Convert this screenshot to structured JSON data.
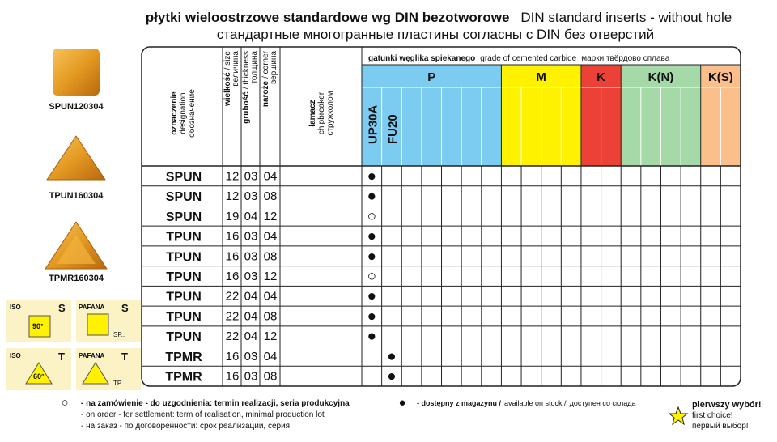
{
  "title": {
    "pl": "płytki wieloostrzowe standardowe wg DIN bezotworowe",
    "en": "DIN standard inserts - without hole",
    "ru": "стандартные многогранные пластины согласны с DIN без отверстий"
  },
  "inserts": [
    {
      "label": "SPUN120304"
    },
    {
      "label": "TPUN160304"
    },
    {
      "label": "TPMR160304"
    }
  ],
  "iso_boxes": [
    {
      "iso": "ISO",
      "iso_letter": "S",
      "angle": "90°",
      "pafana": "PAFANA",
      "pafana_letter": "S",
      "code": "SP.."
    },
    {
      "iso": "ISO",
      "iso_letter": "T",
      "angle": "60°",
      "pafana": "PAFANA",
      "pafana_letter": "T",
      "code": "TP.."
    }
  ],
  "table": {
    "headers": {
      "designation": [
        "oznaczenie",
        "designation",
        "обозначение"
      ],
      "size": [
        "wielkość",
        "/ size",
        "величина"
      ],
      "thickness": [
        "grubość",
        "/ thickness",
        "толщина"
      ],
      "corner": [
        "naroże",
        "/ corner",
        "вершина"
      ],
      "chipbreaker": [
        "łamacz",
        "chipbreaker",
        "стружколом"
      ]
    },
    "grade_title": [
      "gatunki węglika spiekanego",
      "grade of cemented carbide",
      "марки твёрдово сплава"
    ],
    "groups": [
      {
        "name": "P",
        "color": "#7ccbf0"
      },
      {
        "name": "M",
        "color": "#fff200"
      },
      {
        "name": "K",
        "color": "#ec4136"
      },
      {
        "name": "K(N)",
        "color": "#a5d9a7"
      },
      {
        "name": "K(S)",
        "color": "#fbbf8c"
      }
    ],
    "grades": [
      "UP30A",
      "FU20"
    ],
    "rows": [
      {
        "designation": "SPUN",
        "size": "12",
        "thickness": "03",
        "corner": "04",
        "grades": [
          "●"
        ]
      },
      {
        "designation": "SPUN",
        "size": "12",
        "thickness": "03",
        "corner": "08",
        "grades": [
          "●"
        ]
      },
      {
        "designation": "SPUN",
        "size": "19",
        "thickness": "04",
        "corner": "12",
        "grades": [
          "○"
        ]
      },
      {
        "designation": "TPUN",
        "size": "16",
        "thickness": "03",
        "corner": "04",
        "grades": [
          "●"
        ]
      },
      {
        "designation": "TPUN",
        "size": "16",
        "thickness": "03",
        "corner": "08",
        "grades": [
          "●"
        ]
      },
      {
        "designation": "TPUN",
        "size": "16",
        "thickness": "03",
        "corner": "12",
        "grades": [
          "○"
        ]
      },
      {
        "designation": "TPUN",
        "size": "22",
        "thickness": "04",
        "corner": "04",
        "grades": [
          "●"
        ]
      },
      {
        "designation": "TPUN",
        "size": "22",
        "thickness": "04",
        "corner": "08",
        "grades": [
          "●"
        ]
      },
      {
        "designation": "TPUN",
        "size": "22",
        "thickness": "04",
        "corner": "12",
        "grades": [
          "●"
        ]
      },
      {
        "designation": "TPMR",
        "size": "16",
        "thickness": "03",
        "corner": "04",
        "grades": [
          null,
          "●"
        ]
      },
      {
        "designation": "TPMR",
        "size": "16",
        "thickness": "03",
        "corner": "08",
        "grades": [
          null,
          "●"
        ]
      }
    ]
  },
  "legend": {
    "on_order": {
      "symbol": "○",
      "lines": [
        "- na zamówienie - do uzgodnienia: termin realizacji, seria produkcyjna",
        "- on order - for settlement: term of realisation, minimal production lot",
        "- на заказ - по договоренности: срок реализации, серия"
      ]
    },
    "stock": {
      "symbol": "●",
      "pl": "- dostępny z magazynu /",
      "en": "available on stock /",
      "ru": "доступен со склада"
    },
    "first_choice": [
      "pierwszy wybór!",
      "first choice!",
      "первый выбор!"
    ]
  }
}
